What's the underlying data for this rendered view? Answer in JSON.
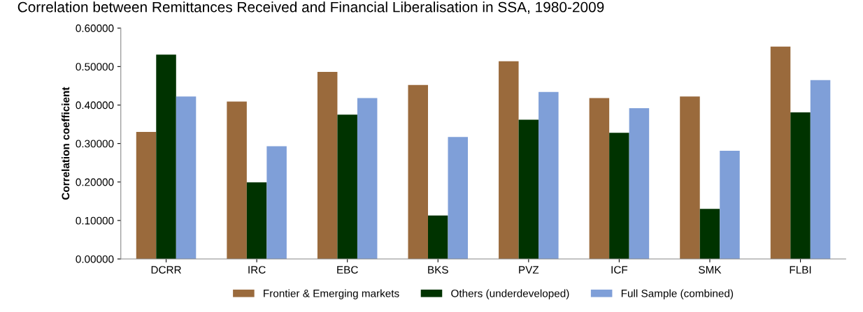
{
  "chart_data": {
    "type": "bar",
    "title": "Correlation between Remittances Received and Financial Liberalisation in SSA, 1980-2009",
    "ylabel": "Correlation coefficient",
    "categories": [
      "DCRR",
      "IRC",
      "EBC",
      "BKS",
      "PVZ",
      "ICF",
      "SMK",
      "FLBI"
    ],
    "series": [
      {
        "name": "Frontier & Emerging markets",
        "color": "#9a6a3c",
        "values": [
          0.33,
          0.409,
          0.486,
          0.452,
          0.514,
          0.418,
          0.422,
          0.552
        ]
      },
      {
        "name": "Others (underdeveloped)",
        "color": "#003300",
        "values": [
          0.531,
          0.199,
          0.375,
          0.113,
          0.362,
          0.328,
          0.13,
          0.381
        ]
      },
      {
        "name": "Full Sample (combined)",
        "color": "#7f9fd8",
        "values": [
          0.422,
          0.293,
          0.418,
          0.317,
          0.434,
          0.392,
          0.281,
          0.465
        ]
      }
    ],
    "ylim": [
      0,
      0.6
    ],
    "yticks": [
      {
        "value": 0,
        "label": "0.00000"
      },
      {
        "value": 0.1,
        "label": "0.10000"
      },
      {
        "value": 0.2,
        "label": "0.20000"
      },
      {
        "value": 0.3,
        "label": "0.30000"
      },
      {
        "value": 0.4,
        "label": "0.40000"
      },
      {
        "value": 0.5,
        "label": "0.50000"
      },
      {
        "value": 0.6,
        "label": "0.60000"
      }
    ],
    "grid": false,
    "legend": "bottom"
  }
}
